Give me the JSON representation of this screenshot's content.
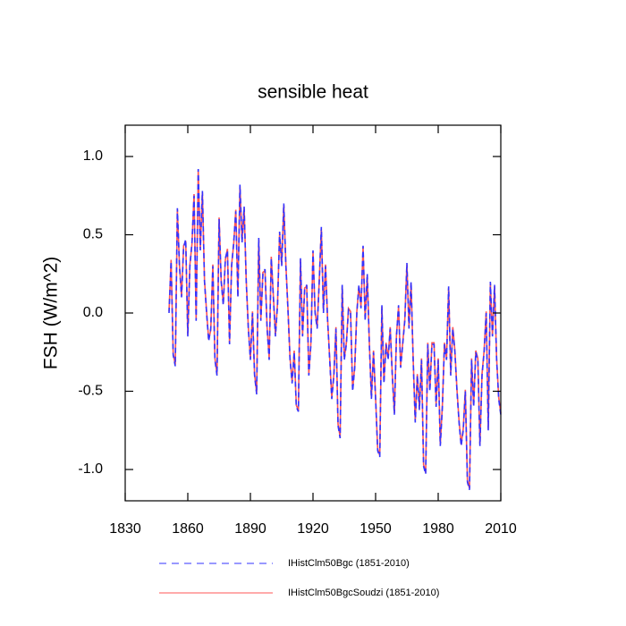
{
  "chart_data": {
    "type": "line",
    "title": "sensible heat",
    "y_label": "FSH  (W/m^2)",
    "x": [
      1851,
      1852,
      1853,
      1854,
      1855,
      1856,
      1857,
      1858,
      1859,
      1860,
      1861,
      1862,
      1863,
      1864,
      1865,
      1866,
      1867,
      1868,
      1869,
      1870,
      1871,
      1872,
      1873,
      1874,
      1875,
      1876,
      1877,
      1878,
      1879,
      1880,
      1881,
      1882,
      1883,
      1884,
      1885,
      1886,
      1887,
      1888,
      1889,
      1890,
      1891,
      1892,
      1893,
      1894,
      1895,
      1896,
      1897,
      1898,
      1899,
      1900,
      1901,
      1902,
      1903,
      1904,
      1905,
      1906,
      1907,
      1908,
      1909,
      1910,
      1911,
      1912,
      1913,
      1914,
      1915,
      1916,
      1917,
      1918,
      1919,
      1920,
      1921,
      1922,
      1923,
      1924,
      1925,
      1926,
      1927,
      1928,
      1929,
      1930,
      1931,
      1932,
      1933,
      1934,
      1935,
      1936,
      1937,
      1938,
      1939,
      1940,
      1941,
      1942,
      1943,
      1944,
      1945,
      1946,
      1947,
      1948,
      1949,
      1950,
      1951,
      1952,
      1953,
      1954,
      1955,
      1956,
      1957,
      1958,
      1959,
      1960,
      1961,
      1962,
      1963,
      1964,
      1965,
      1966,
      1967,
      1968,
      1969,
      1970,
      1971,
      1972,
      1973,
      1974,
      1975,
      1976,
      1977,
      1978,
      1979,
      1980,
      1981,
      1982,
      1983,
      1984,
      1985,
      1986,
      1987,
      1988,
      1989,
      1990,
      1991,
      1992,
      1993,
      1994,
      1995,
      1996,
      1997,
      1998,
      1999,
      2000,
      2001,
      2002,
      2003,
      2004,
      2005,
      2006,
      2007,
      2008,
      2009,
      2010
    ],
    "series": [
      {
        "name": "IHistClm50Bgc (1851-2010)",
        "color": "#3333ff",
        "dash": true,
        "values": [
          0.0,
          0.33,
          -0.27,
          -0.34,
          0.67,
          0.3,
          0.1,
          0.42,
          0.47,
          -0.15,
          0.3,
          0.45,
          0.75,
          -0.05,
          0.92,
          0.4,
          0.78,
          0.2,
          0.0,
          -0.18,
          -0.1,
          0.3,
          -0.3,
          -0.4,
          0.6,
          0.2,
          0.05,
          0.35,
          0.4,
          -0.2,
          0.3,
          0.45,
          0.65,
          0.1,
          0.82,
          0.45,
          0.68,
          0.2,
          -0.1,
          -0.3,
          0.0,
          -0.4,
          -0.52,
          0.48,
          -0.05,
          0.25,
          0.28,
          -0.1,
          -0.3,
          0.35,
          0.1,
          -0.15,
          0.05,
          0.52,
          0.3,
          0.7,
          0.3,
          0.02,
          -0.3,
          -0.45,
          -0.25,
          -0.6,
          -0.63,
          0.35,
          -0.15,
          0.15,
          0.18,
          -0.4,
          -0.2,
          0.4,
          0.0,
          -0.1,
          0.2,
          0.55,
          0.0,
          0.3,
          -0.05,
          -0.3,
          -0.55,
          -0.4,
          -0.1,
          -0.72,
          -0.8,
          0.18,
          -0.3,
          -0.2,
          0.02,
          0.0,
          -0.5,
          -0.35,
          0.0,
          0.18,
          0.03,
          0.43,
          -0.05,
          0.25,
          -0.2,
          -0.55,
          -0.25,
          -0.55,
          -0.88,
          -0.92,
          0.05,
          -0.45,
          -0.2,
          -0.3,
          -0.1,
          -0.4,
          -0.65,
          -0.15,
          0.05,
          -0.35,
          -0.2,
          -0.05,
          0.32,
          -0.1,
          0.2,
          -0.3,
          -0.7,
          -0.4,
          -0.62,
          -0.3,
          -0.98,
          -1.03,
          -0.2,
          -0.5,
          -0.2,
          -0.2,
          -0.6,
          -0.3,
          -0.85,
          -0.6,
          -0.2,
          -0.3,
          0.17,
          -0.4,
          -0.1,
          -0.25,
          -0.5,
          -0.7,
          -0.85,
          -0.75,
          -0.5,
          -1.08,
          -1.13,
          -0.3,
          -0.6,
          -0.25,
          -0.3,
          -0.85,
          -0.4,
          -0.25,
          0.0,
          -0.75,
          0.2,
          -0.15,
          0.18,
          -0.3,
          -0.55,
          -0.65
        ]
      },
      {
        "name": "IHistClm50BgcSoudzi (1851-2010)",
        "color": "#ff5555",
        "dash": false,
        "values": [
          0.01,
          0.34,
          -0.26,
          -0.33,
          0.66,
          0.31,
          0.11,
          0.43,
          0.46,
          -0.14,
          0.31,
          0.44,
          0.76,
          -0.04,
          0.91,
          0.41,
          0.77,
          0.21,
          0.01,
          -0.17,
          -0.11,
          0.31,
          -0.29,
          -0.39,
          0.61,
          0.21,
          0.06,
          0.34,
          0.41,
          -0.19,
          0.31,
          0.44,
          0.66,
          0.11,
          0.81,
          0.46,
          0.67,
          0.21,
          -0.09,
          -0.29,
          0.01,
          -0.39,
          -0.51,
          0.47,
          -0.04,
          0.26,
          0.27,
          -0.09,
          -0.29,
          0.36,
          0.11,
          -0.14,
          0.06,
          0.51,
          0.31,
          0.69,
          0.31,
          0.03,
          -0.29,
          -0.44,
          -0.24,
          -0.59,
          -0.62,
          0.34,
          -0.14,
          0.16,
          0.17,
          -0.39,
          -0.19,
          0.39,
          0.01,
          -0.09,
          0.21,
          0.54,
          0.01,
          0.31,
          -0.04,
          -0.29,
          -0.54,
          -0.39,
          -0.09,
          -0.71,
          -0.79,
          0.17,
          -0.29,
          -0.19,
          0.03,
          0.01,
          -0.49,
          -0.34,
          0.01,
          0.17,
          0.04,
          0.42,
          -0.04,
          0.24,
          -0.19,
          -0.54,
          -0.24,
          -0.54,
          -0.87,
          -0.91,
          0.04,
          -0.44,
          -0.19,
          -0.29,
          -0.09,
          -0.39,
          -0.64,
          -0.14,
          0.04,
          -0.34,
          -0.19,
          -0.04,
          0.31,
          -0.09,
          0.19,
          -0.29,
          -0.69,
          -0.39,
          -0.61,
          -0.29,
          -0.97,
          -1.02,
          -0.19,
          -0.49,
          -0.19,
          -0.19,
          -0.59,
          -0.29,
          -0.84,
          -0.59,
          -0.19,
          -0.29,
          0.16,
          -0.39,
          -0.09,
          -0.24,
          -0.49,
          -0.69,
          -0.84,
          -0.74,
          -0.49,
          -1.07,
          -1.12,
          -0.29,
          -0.59,
          -0.24,
          -0.29,
          -0.84,
          -0.39,
          -0.24,
          0.01,
          -0.74,
          0.19,
          -0.14,
          0.17,
          -0.29,
          -0.54,
          -0.64
        ]
      }
    ],
    "xlim": [
      1830,
      2010
    ],
    "xticks": [
      1830,
      1860,
      1890,
      1920,
      1950,
      1980,
      2010
    ],
    "ylim": [
      -1.2,
      1.2
    ],
    "yticks": [
      {
        "value": -1.0,
        "label": "-1.0"
      },
      -0.5,
      {
        "value": 0.0,
        "label": "0.0"
      },
      0.5,
      {
        "value": 1.0,
        "label": "1.0"
      }
    ]
  }
}
